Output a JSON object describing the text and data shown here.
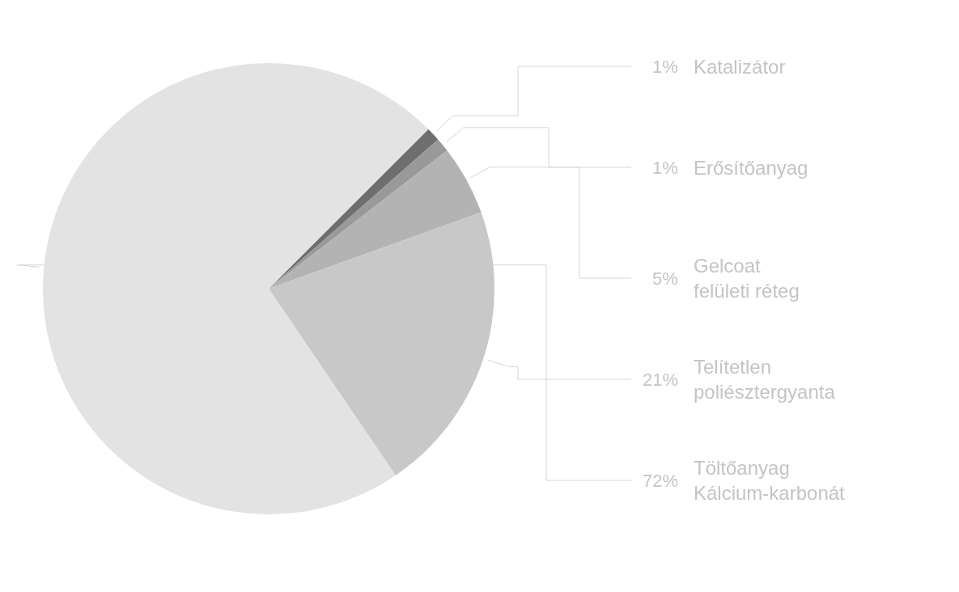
{
  "chart_data": {
    "type": "pie",
    "categories": [
      "Katalizátor",
      "Erősítőanyag",
      "Gelcoat\nfelületi réteg",
      "Telítetlen\npoliésztergyanta",
      "Töltőanyag\nKálcium-karbonát"
    ],
    "values": [
      1,
      1,
      5,
      21,
      72
    ],
    "colors": [
      "#6e6e6e",
      "#999999",
      "#b3b3b3",
      "#c8c8c8",
      "#e3e3e3"
    ],
    "value_labels": [
      "1%",
      "1%",
      "5%",
      "21%",
      "72%"
    ],
    "legend": false
  }
}
